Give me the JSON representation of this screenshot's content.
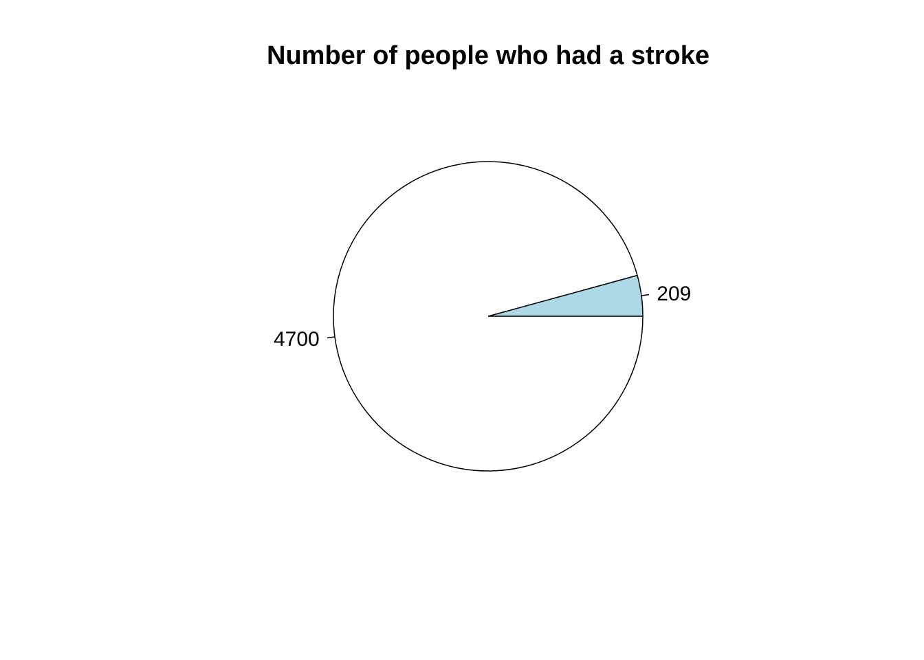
{
  "chart_data": {
    "type": "pie",
    "title": "Number of people who had a stroke",
    "direction": "counterclockwise",
    "start": "3 o'clock",
    "slices": [
      {
        "label": "209",
        "value": 209,
        "color": "#add8e6"
      },
      {
        "label": "4700",
        "value": 4700,
        "color": "#ffffff"
      }
    ],
    "outline_color": "#000000",
    "background": "#ffffff"
  }
}
